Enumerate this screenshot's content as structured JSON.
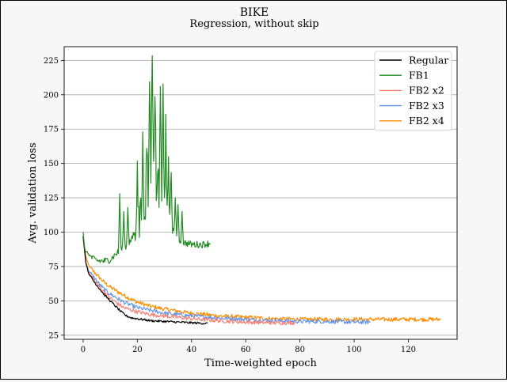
{
  "chart_data": {
    "type": "line",
    "title": "BIKE",
    "subtitle": "Regression, without skip",
    "xlabel": "Time-weighted epoch",
    "ylabel": "Avg. validation loss",
    "xlim": [
      -7,
      138
    ],
    "ylim": [
      22,
      235
    ],
    "xticks": [
      0,
      20,
      40,
      60,
      80,
      100,
      120
    ],
    "yticks": [
      25,
      50,
      75,
      100,
      125,
      150,
      175,
      200,
      225
    ],
    "grid": "horizontal",
    "legend_position": "top-right",
    "series": [
      {
        "name": "Regular",
        "color": "#000000",
        "x_max": 46,
        "points": [
          [
            0,
            97
          ],
          [
            1,
            78
          ],
          [
            2,
            70
          ],
          [
            4,
            64
          ],
          [
            6,
            59
          ],
          [
            8,
            54
          ],
          [
            10,
            50
          ],
          [
            12,
            46
          ],
          [
            14,
            42
          ],
          [
            16,
            39
          ],
          [
            18,
            37.5
          ],
          [
            20,
            37
          ],
          [
            25,
            35.5
          ],
          [
            30,
            35
          ],
          [
            35,
            34.5
          ],
          [
            40,
            34
          ],
          [
            46,
            33.5
          ]
        ],
        "noise": 0.8
      },
      {
        "name": "FB1",
        "color": "#228b22",
        "x_max": 47,
        "points": [
          [
            0,
            100
          ],
          [
            0.6,
            87
          ],
          [
            2,
            84
          ],
          [
            4,
            80
          ],
          [
            6,
            79
          ],
          [
            8,
            79
          ],
          [
            10,
            80
          ],
          [
            12,
            84
          ],
          [
            14,
            87
          ],
          [
            16,
            90
          ],
          [
            18,
            95
          ],
          [
            20,
            105
          ],
          [
            22,
            115
          ],
          [
            24,
            130
          ],
          [
            25,
            150
          ],
          [
            26,
            140
          ],
          [
            28,
            130
          ],
          [
            30,
            115
          ],
          [
            32,
            105
          ],
          [
            34,
            98
          ],
          [
            36,
            93
          ],
          [
            38,
            92
          ],
          [
            40,
            91
          ],
          [
            44,
            91
          ],
          [
            47,
            92
          ]
        ],
        "noise": 2.5,
        "peaks": [
          [
            13.5,
            128
          ],
          [
            15,
            115
          ],
          [
            16.5,
            118
          ],
          [
            20,
            155
          ],
          [
            22,
            175
          ],
          [
            23.5,
            165
          ],
          [
            24.5,
            215
          ],
          [
            25.5,
            226
          ],
          [
            26.5,
            200
          ],
          [
            27.5,
            150
          ],
          [
            28.5,
            198
          ],
          [
            29.5,
            203
          ],
          [
            30.5,
            182
          ],
          [
            31.5,
            150
          ],
          [
            32.5,
            148
          ],
          [
            34,
            125
          ],
          [
            35,
            120
          ],
          [
            36.5,
            115
          ]
        ]
      },
      {
        "name": "FB2 x2",
        "color": "#fa8072",
        "x_max": 78,
        "points": [
          [
            0,
            95
          ],
          [
            1,
            78
          ],
          [
            2,
            71
          ],
          [
            4,
            65
          ],
          [
            6,
            60
          ],
          [
            8,
            56
          ],
          [
            10,
            52
          ],
          [
            12,
            49
          ],
          [
            15,
            45
          ],
          [
            20,
            42
          ],
          [
            25,
            40
          ],
          [
            30,
            39
          ],
          [
            40,
            37
          ],
          [
            50,
            35.5
          ],
          [
            60,
            34.5
          ],
          [
            70,
            34
          ],
          [
            78,
            34
          ]
        ],
        "noise": 1.4
      },
      {
        "name": "FB2 x3",
        "color": "#6495ed",
        "x_max": 106,
        "points": [
          [
            0,
            96
          ],
          [
            1,
            78
          ],
          [
            2,
            72
          ],
          [
            4,
            67
          ],
          [
            6,
            62
          ],
          [
            8,
            58
          ],
          [
            10,
            55
          ],
          [
            15,
            49
          ],
          [
            20,
            45
          ],
          [
            25,
            43
          ],
          [
            30,
            41
          ],
          [
            40,
            39
          ],
          [
            50,
            37.5
          ],
          [
            60,
            36.5
          ],
          [
            70,
            35.5
          ],
          [
            80,
            35
          ],
          [
            90,
            35
          ],
          [
            100,
            34.5
          ],
          [
            106,
            34.5
          ]
        ],
        "noise": 1.5
      },
      {
        "name": "FB2 x4",
        "color": "#ff8c00",
        "x_max": 132,
        "points": [
          [
            0,
            97
          ],
          [
            1,
            82
          ],
          [
            2,
            76
          ],
          [
            4,
            71
          ],
          [
            6,
            67
          ],
          [
            8,
            63
          ],
          [
            10,
            60
          ],
          [
            15,
            54
          ],
          [
            20,
            49
          ],
          [
            25,
            46
          ],
          [
            30,
            44
          ],
          [
            40,
            41
          ],
          [
            50,
            39
          ],
          [
            60,
            38
          ],
          [
            70,
            37
          ],
          [
            80,
            36.5
          ],
          [
            90,
            36.5
          ],
          [
            100,
            36.5
          ],
          [
            110,
            36.5
          ],
          [
            120,
            36.5
          ],
          [
            132,
            36.5
          ]
        ],
        "noise": 1.5
      }
    ]
  }
}
